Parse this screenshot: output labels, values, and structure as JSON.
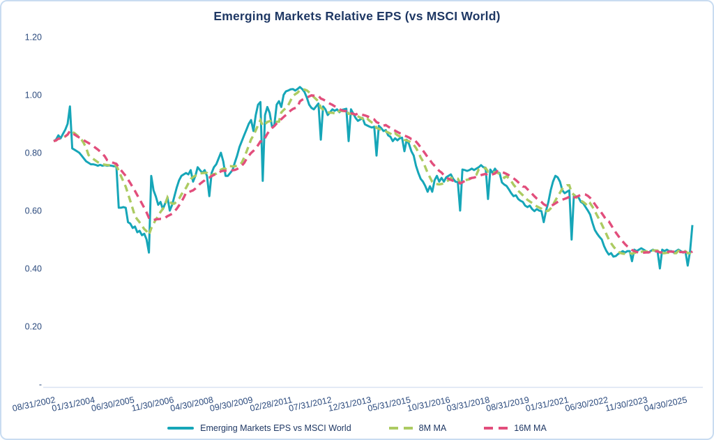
{
  "title": "Emerging Markets Relative EPS (vs MSCI World)",
  "colors": {
    "title_text": "#1f3864",
    "axis_text": "#2b4a7d",
    "card_border": "#c9dcf1",
    "axis_line": "#d9e2f2",
    "series_main": "#16a6b8",
    "series_ma8": "#accb62",
    "series_ma16": "#e24e7c"
  },
  "legend": {
    "items": [
      {
        "label": "Emerging Markets EPS vs MSCI World",
        "style": "solid",
        "color": "#16a6b8"
      },
      {
        "label": "8M MA",
        "style": "dashed",
        "color": "#accb62"
      },
      {
        "label": "16M MA",
        "style": "dashed",
        "color": "#e24e7c"
      }
    ]
  },
  "chart_data": {
    "type": "line",
    "title": "Emerging Markets Relative EPS (vs MSCI World)",
    "xlabel": "",
    "ylabel": "",
    "grid": false,
    "legend_position": "bottom",
    "x_axis": {
      "kind": "monthly categories",
      "start": "08/31/2002",
      "tick_every_n_points": 17,
      "tick_labels": [
        "08/31/2002",
        "01/31/2004",
        "06/30/2005",
        "11/30/2006",
        "04/30/2008",
        "09/30/2009",
        "02/28/2011",
        "07/31/2012",
        "12/31/2013",
        "05/31/2015",
        "10/31/2016",
        "03/31/2018",
        "08/31/2019",
        "01/31/2021",
        "06/30/2022",
        "11/30/2023",
        "04/30/2025"
      ],
      "label_rotation_deg": -12
    },
    "y_axis": {
      "min": 0,
      "max": 1.2,
      "tick_values": [
        0,
        0.2,
        0.4,
        0.6,
        0.8,
        1.0,
        1.2
      ],
      "tick_labels": [
        "-",
        "0.20",
        "0.40",
        "0.60",
        "0.80",
        "1.00",
        "1.20"
      ]
    },
    "series": [
      {
        "name": "Emerging Markets EPS vs MSCI World",
        "color": "#16a6b8",
        "style": "solid",
        "values": [
          0.84,
          0.845,
          0.86,
          0.85,
          0.865,
          0.88,
          0.9,
          0.96,
          0.815,
          0.81,
          0.805,
          0.8,
          0.79,
          0.78,
          0.77,
          0.765,
          0.76,
          0.76,
          0.758,
          0.755,
          0.758,
          0.755,
          0.757,
          0.755,
          0.756,
          0.755,
          0.753,
          0.755,
          0.61,
          0.61,
          0.612,
          0.61,
          0.56,
          0.555,
          0.54,
          0.545,
          0.525,
          0.53,
          0.515,
          0.52,
          0.5,
          0.455,
          0.72,
          0.67,
          0.648,
          0.62,
          0.63,
          0.605,
          0.625,
          0.645,
          0.6,
          0.62,
          0.65,
          0.68,
          0.705,
          0.72,
          0.725,
          0.73,
          0.725,
          0.74,
          0.7,
          0.72,
          0.75,
          0.74,
          0.73,
          0.74,
          0.72,
          0.65,
          0.73,
          0.75,
          0.76,
          0.78,
          0.8,
          0.77,
          0.72,
          0.72,
          0.73,
          0.74,
          0.766,
          0.79,
          0.82,
          0.84,
          0.86,
          0.88,
          0.9,
          0.913,
          0.875,
          0.93,
          0.966,
          0.975,
          0.703,
          0.93,
          0.958,
          0.937,
          0.89,
          0.895,
          0.966,
          0.978,
          0.958,
          1.0,
          1.012,
          1.015,
          1.019,
          1.02,
          1.015,
          1.02,
          1.027,
          1.02,
          1.01,
          0.99,
          0.966,
          0.955,
          0.95,
          0.96,
          0.97,
          0.845,
          0.96,
          0.95,
          0.93,
          0.94,
          0.95,
          0.945,
          0.95,
          0.94,
          0.948,
          0.95,
          0.952,
          0.84,
          0.95,
          0.935,
          0.92,
          0.91,
          0.915,
          0.92,
          0.898,
          0.894,
          0.89,
          0.887,
          0.89,
          0.79,
          0.893,
          0.885,
          0.875,
          0.878,
          0.86,
          0.855,
          0.84,
          0.85,
          0.843,
          0.85,
          0.852,
          0.805,
          0.845,
          0.83,
          0.805,
          0.79,
          0.755,
          0.73,
          0.71,
          0.7,
          0.685,
          0.665,
          0.684,
          0.665,
          0.705,
          0.72,
          0.7,
          0.713,
          0.7,
          0.715,
          0.72,
          0.725,
          0.71,
          0.7,
          0.698,
          0.6,
          0.742,
          0.74,
          0.737,
          0.74,
          0.745,
          0.74,
          0.745,
          0.75,
          0.757,
          0.75,
          0.748,
          0.64,
          0.742,
          0.73,
          0.745,
          0.733,
          0.73,
          0.697,
          0.69,
          0.685,
          0.673,
          0.66,
          0.65,
          0.653,
          0.64,
          0.634,
          0.63,
          0.617,
          0.612,
          0.617,
          0.605,
          0.598,
          0.605,
          0.6,
          0.598,
          0.56,
          0.6,
          0.63,
          0.67,
          0.7,
          0.72,
          0.715,
          0.7,
          0.67,
          0.66,
          0.665,
          0.67,
          0.5,
          0.655,
          0.648,
          0.645,
          0.63,
          0.625,
          0.612,
          0.6,
          0.586,
          0.557,
          0.533,
          0.52,
          0.509,
          0.5,
          0.477,
          0.46,
          0.448,
          0.453,
          0.441,
          0.443,
          0.45,
          0.455,
          0.46,
          0.455,
          0.46,
          0.46,
          0.425,
          0.465,
          0.46,
          0.465,
          0.47,
          0.465,
          0.46,
          0.455,
          0.46,
          0.465,
          0.46,
          0.46,
          0.4,
          0.465,
          0.46,
          0.465,
          0.46,
          0.46,
          0.455,
          0.46,
          0.465,
          0.46,
          0.455,
          0.46,
          0.41,
          0.46,
          0.55
        ]
      },
      {
        "name": "8M MA",
        "color": "#accb62",
        "style": "dashed",
        "derived": "8-month trailing moving average of main series (partial windows at start)",
        "window": 8
      },
      {
        "name": "16M MA",
        "color": "#e24e7c",
        "style": "dashed",
        "derived": "16-month trailing moving average of main series (partial windows at start)",
        "window": 16
      }
    ]
  }
}
